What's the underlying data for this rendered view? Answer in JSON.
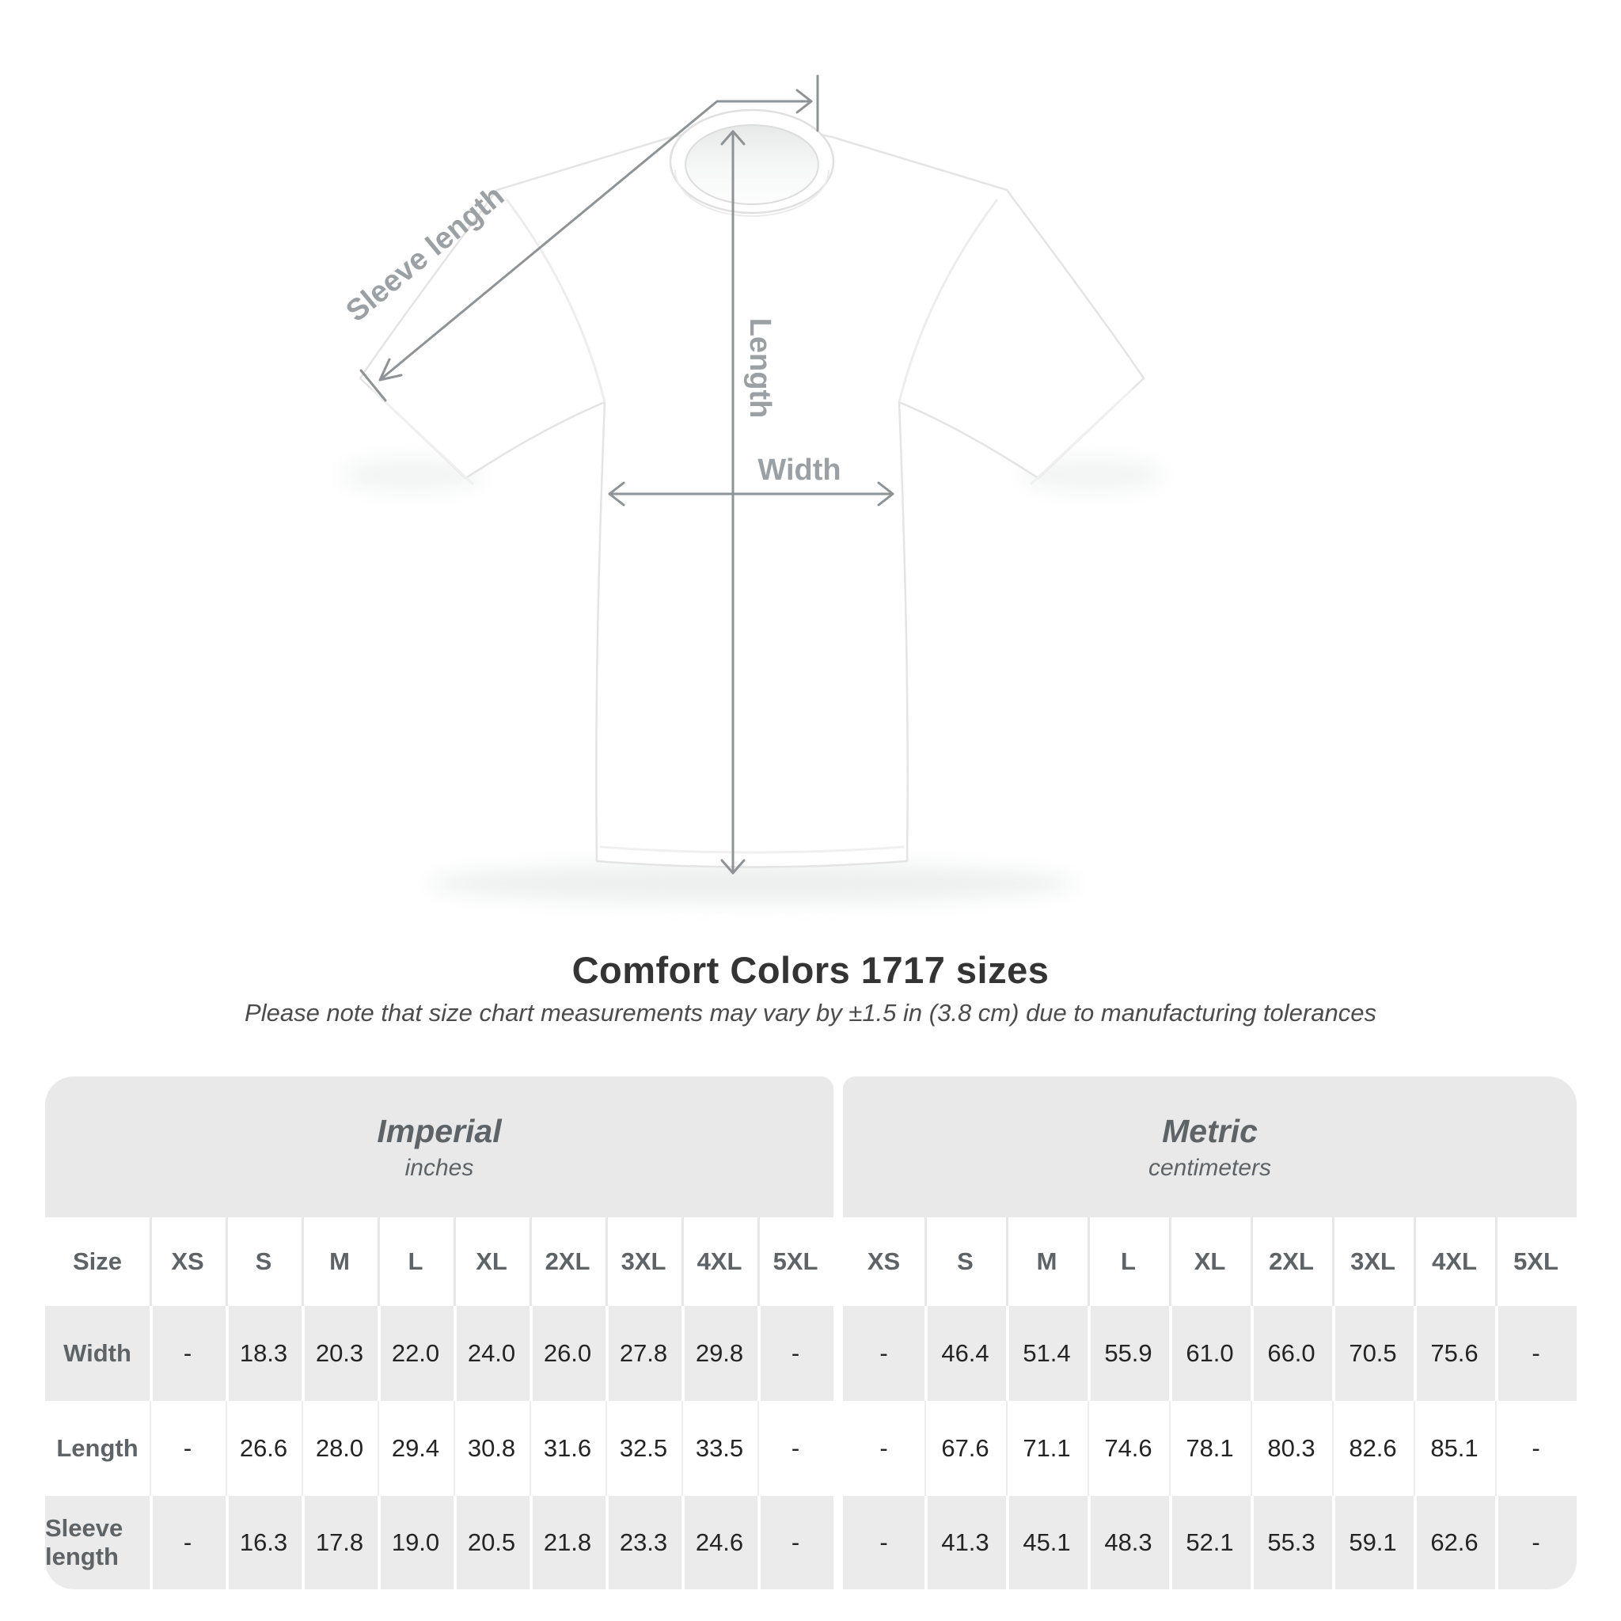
{
  "diagram": {
    "labels": {
      "sleeve_length": "Sleeve length",
      "length": "Length",
      "width": "Width"
    },
    "line_color": "#8d9396",
    "label_color": "#9aa0a3"
  },
  "title": "Comfort Colors 1717 sizes",
  "subtitle": "Please note that size chart measurements may vary by ±1.5 in (3.8 cm) due to manufacturing tolerances",
  "table": {
    "size_label": "Size",
    "group_headers": [
      {
        "title": "Imperial",
        "subtitle": "inches"
      },
      {
        "title": "Metric",
        "subtitle": "centimeters"
      }
    ],
    "sizes": [
      "XS",
      "S",
      "M",
      "L",
      "XL",
      "2XL",
      "3XL",
      "4XL",
      "5XL"
    ],
    "rows": [
      {
        "label": "Width",
        "imperial": [
          "-",
          "18.3",
          "20.3",
          "22.0",
          "24.0",
          "26.0",
          "27.8",
          "29.8",
          "-"
        ],
        "metric": [
          "-",
          "46.4",
          "51.4",
          "55.9",
          "61.0",
          "66.0",
          "70.5",
          "75.6",
          "-"
        ]
      },
      {
        "label": "Length",
        "imperial": [
          "-",
          "26.6",
          "28.0",
          "29.4",
          "30.8",
          "31.6",
          "32.5",
          "33.5",
          "-"
        ],
        "metric": [
          "-",
          "67.6",
          "71.1",
          "74.6",
          "78.1",
          "80.3",
          "82.6",
          "85.1",
          "-"
        ]
      },
      {
        "label": "Sleeve length",
        "imperial": [
          "-",
          "16.3",
          "17.8",
          "19.0",
          "20.5",
          "21.8",
          "23.3",
          "24.6",
          "-"
        ],
        "metric": [
          "-",
          "41.3",
          "45.1",
          "48.3",
          "52.1",
          "55.3",
          "59.1",
          "62.6",
          "-"
        ]
      }
    ]
  },
  "chart_data": {
    "type": "table",
    "title": "Comfort Colors 1717 sizes",
    "note": "Please note that size chart measurements may vary by ±1.5 in (3.8 cm) due to manufacturing tolerances",
    "unit_groups": [
      {
        "name": "Imperial",
        "unit": "inches"
      },
      {
        "name": "Metric",
        "unit": "centimeters"
      }
    ],
    "columns": [
      "XS",
      "S",
      "M",
      "L",
      "XL",
      "2XL",
      "3XL",
      "4XL",
      "5XL"
    ],
    "rows": [
      {
        "measurement": "Width",
        "imperial_in": [
          null,
          18.3,
          20.3,
          22.0,
          24.0,
          26.0,
          27.8,
          29.8,
          null
        ],
        "metric_cm": [
          null,
          46.4,
          51.4,
          55.9,
          61.0,
          66.0,
          70.5,
          75.6,
          null
        ]
      },
      {
        "measurement": "Length",
        "imperial_in": [
          null,
          26.6,
          28.0,
          29.4,
          30.8,
          31.6,
          32.5,
          33.5,
          null
        ],
        "metric_cm": [
          null,
          67.6,
          71.1,
          74.6,
          78.1,
          80.3,
          82.6,
          85.1,
          null
        ]
      },
      {
        "measurement": "Sleeve length",
        "imperial_in": [
          null,
          16.3,
          17.8,
          19.0,
          20.5,
          21.8,
          23.3,
          24.6,
          null
        ],
        "metric_cm": [
          null,
          41.3,
          45.1,
          48.3,
          52.1,
          55.3,
          59.1,
          62.6,
          null
        ]
      }
    ]
  }
}
